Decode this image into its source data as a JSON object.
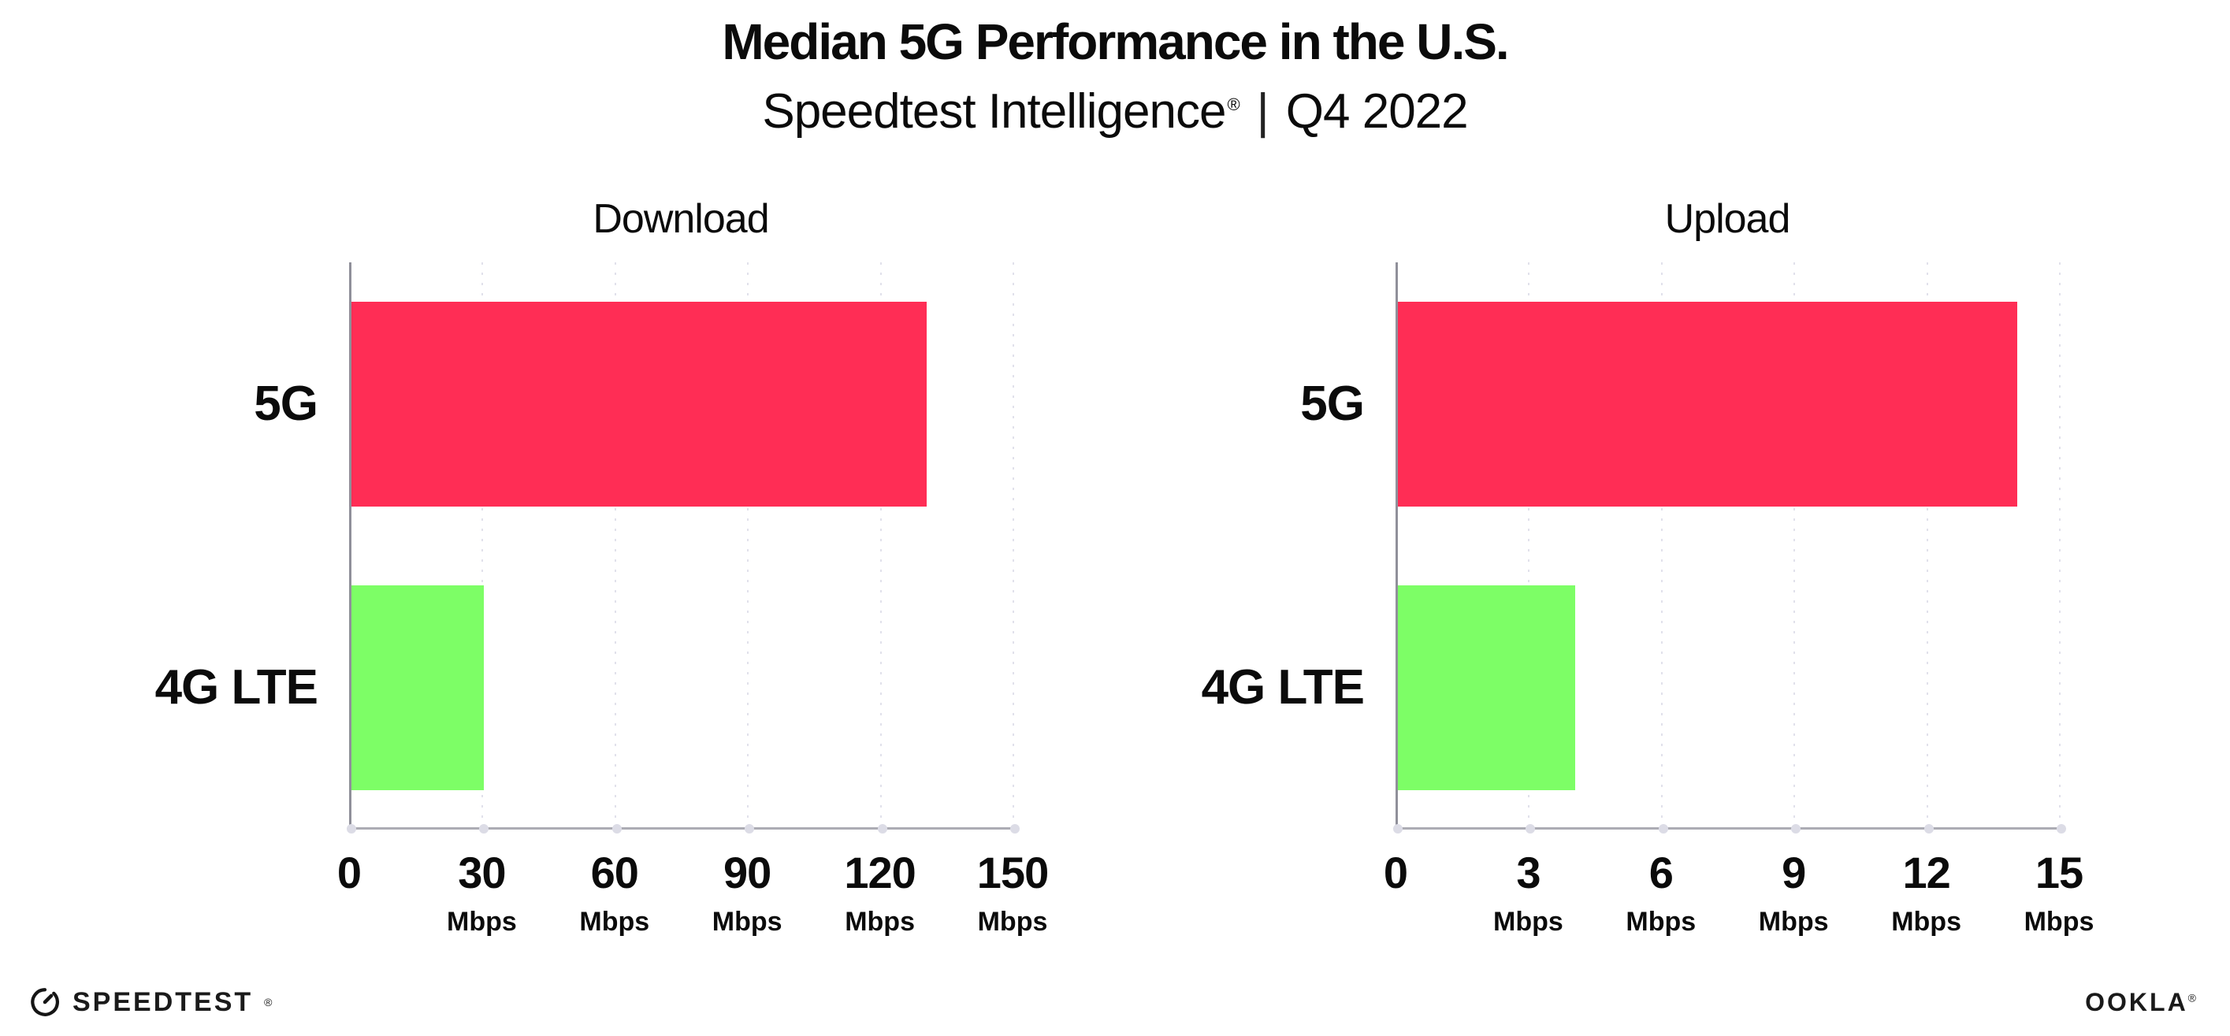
{
  "header": {
    "title": "Median 5G Performance in the U.S.",
    "subtitle": {
      "brand": "Speedtest Intelligence",
      "registered": "®",
      "separator": "|",
      "period": "Q4 2022"
    }
  },
  "chart_data": [
    {
      "type": "bar",
      "orientation": "horizontal",
      "title": "Download",
      "categories": [
        "5G",
        "4G LTE"
      ],
      "values": [
        130,
        30
      ],
      "unit": "Mbps",
      "xlim": [
        0,
        150
      ],
      "xticks": [
        0,
        30,
        60,
        90,
        120,
        150
      ],
      "bar_colors": [
        "#FF2D55",
        "#7DFE66"
      ],
      "grid": "vertical-dotted",
      "legend": "none"
    },
    {
      "type": "bar",
      "orientation": "horizontal",
      "title": "Upload",
      "categories": [
        "5G",
        "4G LTE"
      ],
      "values": [
        14,
        4
      ],
      "unit": "Mbps",
      "xlim": [
        0,
        15
      ],
      "xticks": [
        0,
        3,
        6,
        9,
        12,
        15
      ],
      "bar_colors": [
        "#FF2D55",
        "#7DFE66"
      ],
      "grid": "vertical-dotted",
      "legend": "none"
    }
  ],
  "footer": {
    "speedtest_wordmark": "SPEEDTEST",
    "speedtest_mark": "®",
    "ookla_wordmark": "OOKLA",
    "ookla_mark": "®"
  },
  "colors": {
    "bar_5g": "#FF2D55",
    "bar_4g_lte": "#7DFE66",
    "axis_spine": "#90909A",
    "axis_line": "#ACACB4",
    "gridline": "#E1E1EB",
    "text": "#0B0B0B"
  }
}
